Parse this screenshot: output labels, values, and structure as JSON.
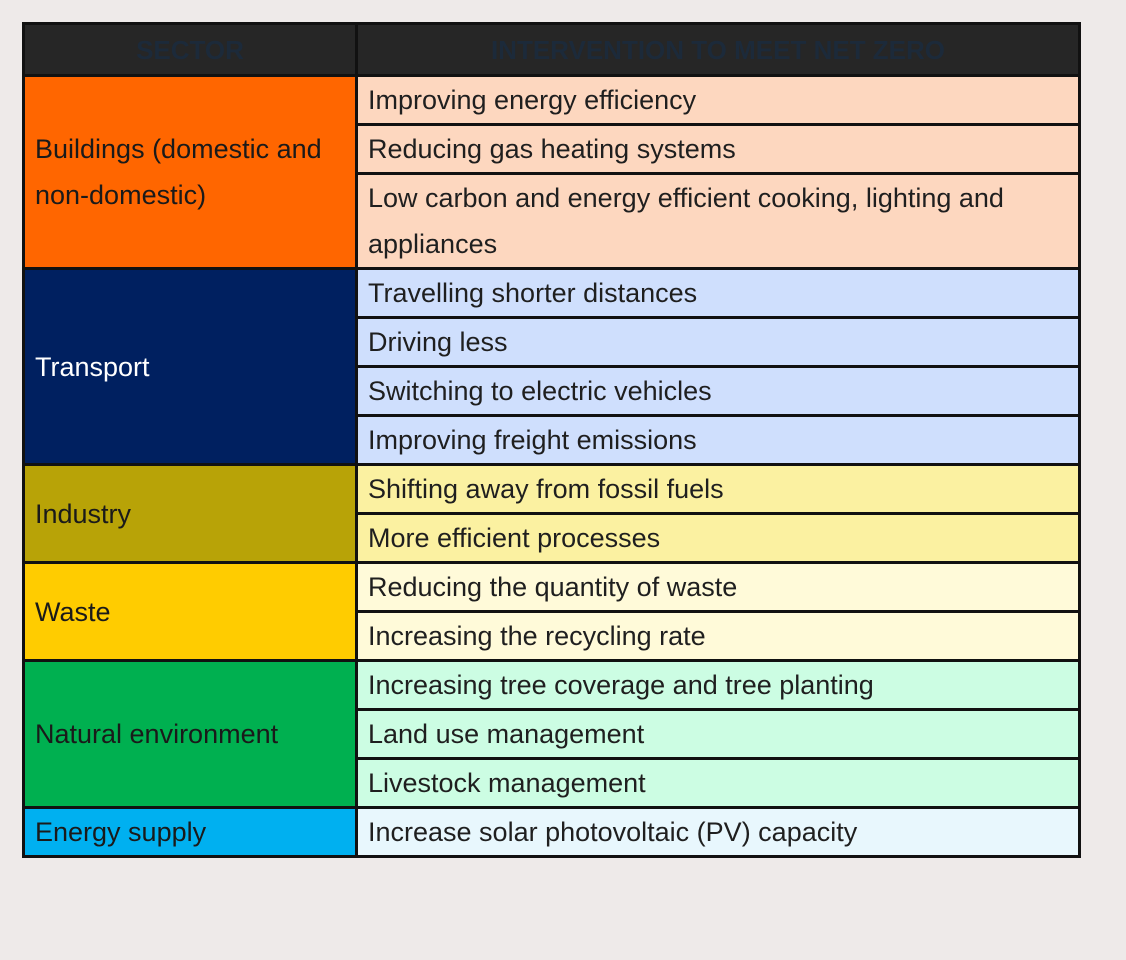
{
  "header": {
    "sector": "SECTOR",
    "intervention": "INTERVENTION TO MEET NET ZERO"
  },
  "sectors": [
    {
      "name": "Buildings (domestic and non-domestic)",
      "color": "#ff6600",
      "text_color": "#1a1a1a",
      "row_color": "#fdd7bf",
      "interventions": [
        "Improving energy efficiency",
        "Reducing gas heating systems",
        "Low carbon and energy efficient cooking, lighting and appliances"
      ]
    },
    {
      "name": "Transport",
      "color": "#002060",
      "text_color": "#ffffff",
      "row_color": "#cfdffd",
      "interventions": [
        "Travelling shorter distances",
        "Driving less",
        "Switching to electric vehicles",
        "Improving freight emissions"
      ]
    },
    {
      "name": "Industry",
      "color": "#b8a307",
      "text_color": "#1a1a1a",
      "row_color": "#fbf1a1",
      "interventions": [
        "Shifting away from fossil fuels",
        "More efficient processes"
      ]
    },
    {
      "name": "Waste",
      "color": "#ffcc00",
      "text_color": "#1a1a1a",
      "row_color": "#fffad9",
      "interventions": [
        "Reducing the quantity of waste",
        "Increasing the recycling rate"
      ]
    },
    {
      "name": "Natural environment",
      "color": "#00b050",
      "text_color": "#1a1a1a",
      "row_color": "#ccfde3",
      "interventions": [
        "Increasing tree coverage and tree planting",
        "Land use management",
        "Livestock management"
      ]
    },
    {
      "name": "Energy supply",
      "color": "#00b0f0",
      "text_color": "#1a1a1a",
      "row_color": "#e8f7fd",
      "interventions": [
        "Increase solar photovoltaic (PV) capacity"
      ]
    }
  ]
}
